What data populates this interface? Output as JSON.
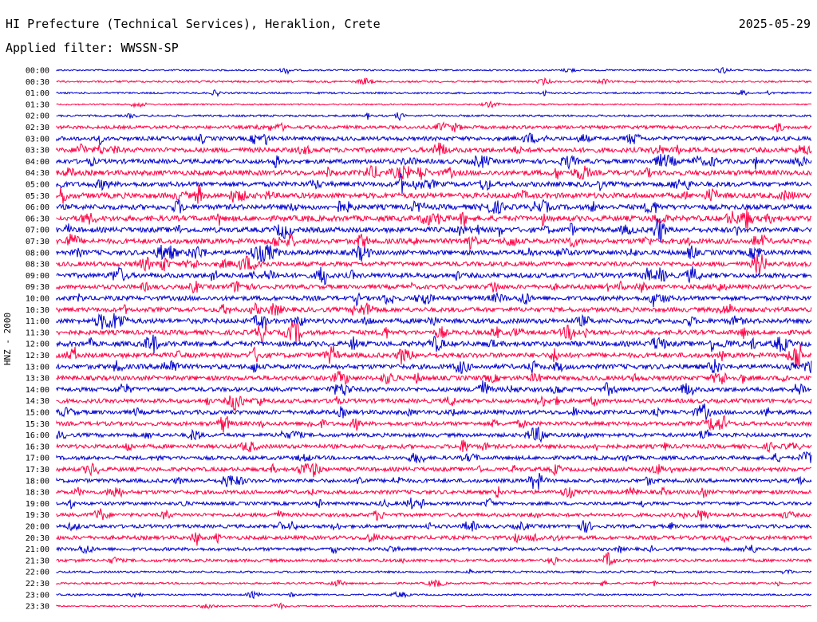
{
  "header": {
    "title": "HI Prefecture (Technical Services), Heraklion, Crete",
    "date": "2025-05-29",
    "filter": "Applied filter: WWSSN-SP"
  },
  "chart_data": {
    "type": "line",
    "ylabel": "HNZ - 2000",
    "colors": [
      "#0000cc",
      "#ff0044"
    ],
    "row_labels": [
      "00:00",
      "00:30",
      "01:00",
      "01:30",
      "02:00",
      "02:30",
      "03:00",
      "03:30",
      "04:00",
      "04:30",
      "05:00",
      "05:30",
      "06:00",
      "06:30",
      "07:00",
      "07:30",
      "08:00",
      "08:30",
      "09:00",
      "09:30",
      "10:00",
      "10:30",
      "11:00",
      "11:30",
      "12:00",
      "12:30",
      "13:00",
      "13:30",
      "14:00",
      "14:30",
      "15:00",
      "15:30",
      "16:00",
      "16:30",
      "17:00",
      "17:30",
      "18:00",
      "18:30",
      "19:00",
      "19:30",
      "20:00",
      "20:30",
      "21:00",
      "21:30",
      "22:00",
      "22:30",
      "23:00",
      "23:30"
    ],
    "activity": [
      0.12,
      0.18,
      0.15,
      0.1,
      0.2,
      0.45,
      0.6,
      0.75,
      0.7,
      0.8,
      0.75,
      0.85,
      0.8,
      0.85,
      0.8,
      0.8,
      0.75,
      0.7,
      0.75,
      0.65,
      0.7,
      0.7,
      0.75,
      0.7,
      0.8,
      0.75,
      0.75,
      0.7,
      0.65,
      0.6,
      0.65,
      0.6,
      0.55,
      0.6,
      0.55,
      0.6,
      0.55,
      0.55,
      0.45,
      0.5,
      0.5,
      0.55,
      0.45,
      0.4,
      0.2,
      0.18,
      0.15,
      0.12
    ]
  }
}
